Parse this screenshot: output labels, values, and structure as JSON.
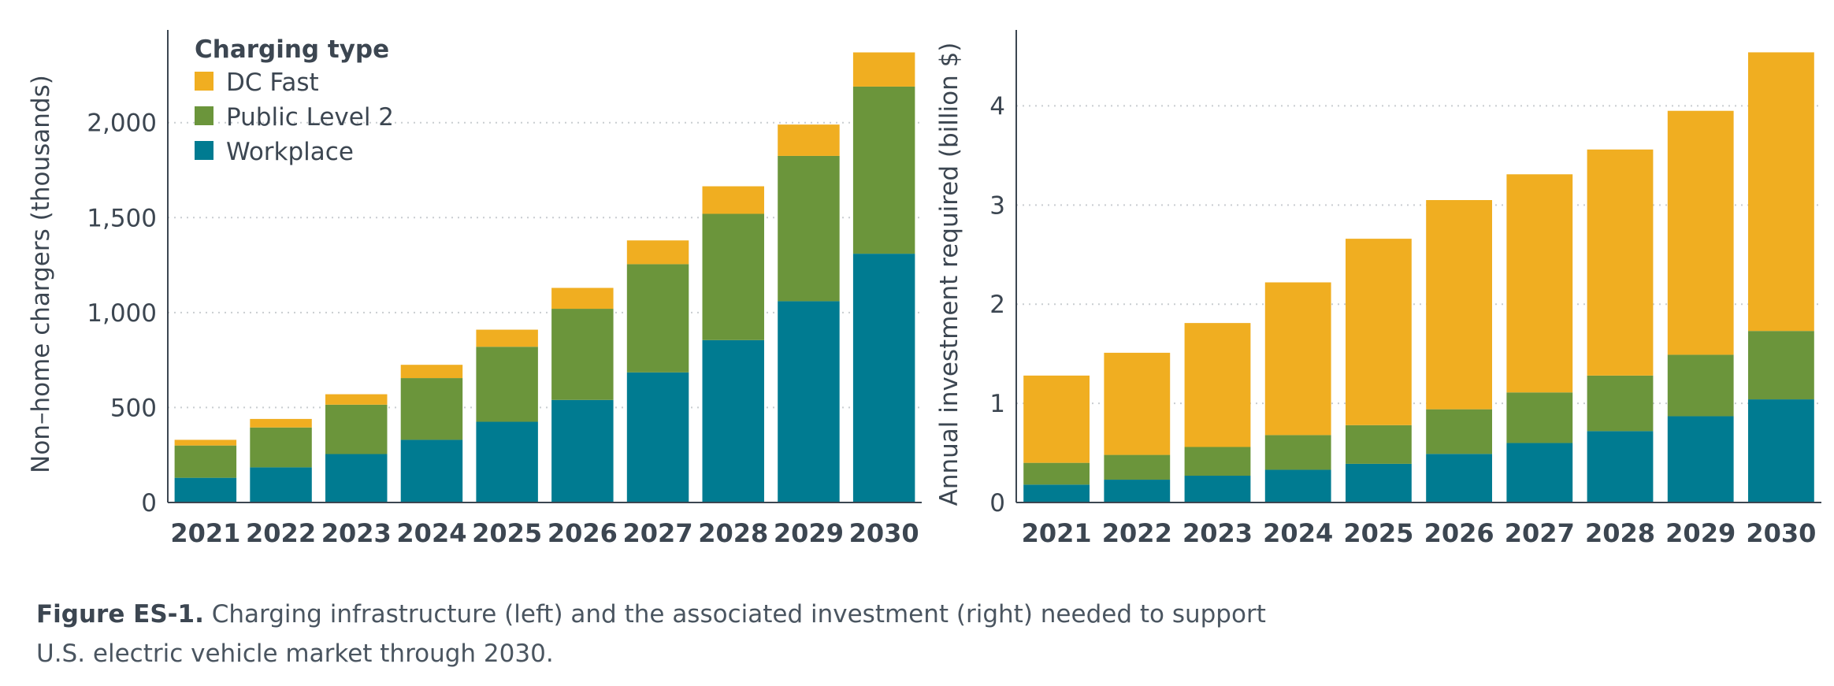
{
  "chart_data": [
    {
      "type": "bar",
      "stacked": true,
      "categories": [
        "2021",
        "2022",
        "2023",
        "2024",
        "2025",
        "2026",
        "2027",
        "2028",
        "2029",
        "2030"
      ],
      "series": [
        {
          "name": "Workplace",
          "color": "#007b91",
          "values": [
            130,
            185,
            255,
            330,
            425,
            540,
            685,
            855,
            1060,
            1310
          ]
        },
        {
          "name": "Public Level 2",
          "color": "#6b953b",
          "values": [
            170,
            210,
            260,
            325,
            395,
            480,
            570,
            665,
            765,
            880
          ]
        },
        {
          "name": "DC Fast",
          "color": "#f0ae21",
          "values": [
            30,
            45,
            55,
            70,
            90,
            110,
            125,
            145,
            165,
            180
          ]
        }
      ],
      "ylabel": "Non–home chargers (thousands)",
      "xlabel": "",
      "ylim": [
        0,
        2480
      ],
      "yticks": [
        0,
        500,
        1000,
        1500,
        2000
      ],
      "ytick_labels": [
        "0",
        "500",
        "1,000",
        "1,500",
        "2,000"
      ],
      "legend": {
        "title": "Charging type",
        "placement": "top-left",
        "items": [
          "DC Fast",
          "Public Level 2",
          "Workplace"
        ]
      },
      "grid": "horizontal dotted"
    },
    {
      "type": "bar",
      "stacked": true,
      "categories": [
        "2021",
        "2022",
        "2023",
        "2024",
        "2025",
        "2026",
        "2027",
        "2028",
        "2029",
        "2030"
      ],
      "series": [
        {
          "name": "Workplace",
          "color": "#007b91",
          "values": [
            0.18,
            0.23,
            0.27,
            0.33,
            0.39,
            0.49,
            0.6,
            0.72,
            0.87,
            1.04
          ]
        },
        {
          "name": "Public Level 2",
          "color": "#6b953b",
          "values": [
            0.22,
            0.25,
            0.29,
            0.35,
            0.39,
            0.45,
            0.51,
            0.56,
            0.62,
            0.69
          ]
        },
        {
          "name": "DC Fast",
          "color": "#f0ae21",
          "values": [
            0.88,
            1.03,
            1.25,
            1.54,
            1.88,
            2.11,
            2.2,
            2.28,
            2.46,
            2.81
          ]
        }
      ],
      "ylabel": "Annual investment required (billion $)",
      "xlabel": "",
      "ylim": [
        0,
        4.75
      ],
      "yticks": [
        0,
        1,
        2,
        3,
        4
      ],
      "ytick_labels": [
        "0",
        "1",
        "2",
        "3",
        "4"
      ],
      "grid": "horizontal dotted"
    }
  ],
  "caption": {
    "label": "Figure ES-1.",
    "text": "Charging infrastructure (left) and the associated investment (right) needed to support U.S. electric vehicle market through 2030."
  }
}
